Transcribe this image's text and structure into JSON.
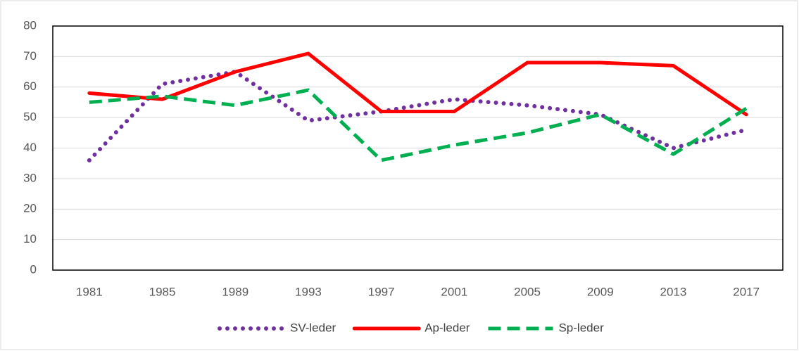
{
  "chart_data": {
    "type": "line",
    "categories": [
      "1981",
      "1985",
      "1989",
      "1993",
      "1997",
      "2001",
      "2005",
      "2009",
      "2013",
      "2017"
    ],
    "series": [
      {
        "name": "SV-leder",
        "color": "#7030a0",
        "style": "dotted",
        "values": [
          36,
          61,
          65,
          49,
          52,
          56,
          54,
          51,
          40,
          46
        ]
      },
      {
        "name": "Ap-leder",
        "color": "#ff0000",
        "style": "solid",
        "values": [
          58,
          56,
          65,
          71,
          52,
          52,
          68,
          68,
          67,
          51
        ]
      },
      {
        "name": "Sp-leder",
        "color": "#00b050",
        "style": "dashed",
        "values": [
          55,
          57,
          54,
          59,
          36,
          41,
          45,
          51,
          38,
          53
        ]
      }
    ],
    "ylim": [
      0,
      80
    ],
    "yticks": [
      0,
      10,
      20,
      30,
      40,
      50,
      60,
      70,
      80
    ],
    "grid": true,
    "legend": "bottom"
  }
}
